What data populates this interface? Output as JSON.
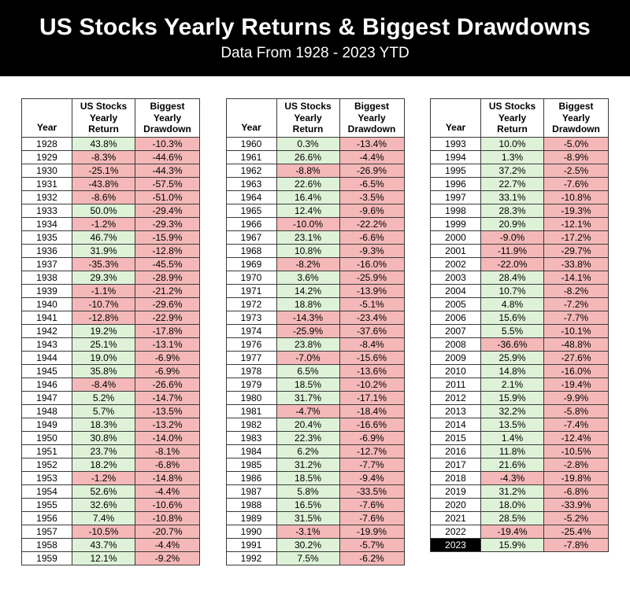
{
  "banner": {
    "title": "US Stocks Yearly Returns & Biggest Drawdowns",
    "subtitle": "Data From 1928 - 2023 YTD"
  },
  "colors": {
    "positive_bg": "#def2d8",
    "negative_bg": "#f5b8b8",
    "border": "#3a3a3a",
    "banner_bg": "#000000",
    "banner_text": "#ffffff",
    "highlight_year_bg": "#000000",
    "highlight_year_text": "#ffffff"
  },
  "chart_data": {
    "type": "table",
    "title": "US Stocks Yearly Returns & Biggest Drawdowns",
    "subtitle": "Data From 1928 - 2023 YTD",
    "columns": [
      "Year",
      "US Stocks Yearly Return",
      "Biggest Yearly Drawdown"
    ],
    "highlighted_year": "2023",
    "tables": [
      {
        "rows": [
          [
            "1928",
            "43.8%",
            "-10.3%"
          ],
          [
            "1929",
            "-8.3%",
            "-44.6%"
          ],
          [
            "1930",
            "-25.1%",
            "-44.3%"
          ],
          [
            "1931",
            "-43.8%",
            "-57.5%"
          ],
          [
            "1932",
            "-8.6%",
            "-51.0%"
          ],
          [
            "1933",
            "50.0%",
            "-29.4%"
          ],
          [
            "1934",
            "-1.2%",
            "-29.3%"
          ],
          [
            "1935",
            "46.7%",
            "-15.9%"
          ],
          [
            "1936",
            "31.9%",
            "-12.8%"
          ],
          [
            "1937",
            "-35.3%",
            "-45.5%"
          ],
          [
            "1938",
            "29.3%",
            "-28.9%"
          ],
          [
            "1939",
            "-1.1%",
            "-21.2%"
          ],
          [
            "1940",
            "-10.7%",
            "-29.6%"
          ],
          [
            "1941",
            "-12.8%",
            "-22.9%"
          ],
          [
            "1942",
            "19.2%",
            "-17.8%"
          ],
          [
            "1943",
            "25.1%",
            "-13.1%"
          ],
          [
            "1944",
            "19.0%",
            "-6.9%"
          ],
          [
            "1945",
            "35.8%",
            "-6.9%"
          ],
          [
            "1946",
            "-8.4%",
            "-26.6%"
          ],
          [
            "1947",
            "5.2%",
            "-14.7%"
          ],
          [
            "1948",
            "5.7%",
            "-13.5%"
          ],
          [
            "1949",
            "18.3%",
            "-13.2%"
          ],
          [
            "1950",
            "30.8%",
            "-14.0%"
          ],
          [
            "1951",
            "23.7%",
            "-8.1%"
          ],
          [
            "1952",
            "18.2%",
            "-6.8%"
          ],
          [
            "1953",
            "-1.2%",
            "-14.8%"
          ],
          [
            "1954",
            "52.6%",
            "-4.4%"
          ],
          [
            "1955",
            "32.6%",
            "-10.6%"
          ],
          [
            "1956",
            "7.4%",
            "-10.8%"
          ],
          [
            "1957",
            "-10.5%",
            "-20.7%"
          ],
          [
            "1958",
            "43.7%",
            "-4.4%"
          ],
          [
            "1959",
            "12.1%",
            "-9.2%"
          ]
        ]
      },
      {
        "rows": [
          [
            "1960",
            "0.3%",
            "-13.4%"
          ],
          [
            "1961",
            "26.6%",
            "-4.4%"
          ],
          [
            "1962",
            "-8.8%",
            "-26.9%"
          ],
          [
            "1963",
            "22.6%",
            "-6.5%"
          ],
          [
            "1964",
            "16.4%",
            "-3.5%"
          ],
          [
            "1965",
            "12.4%",
            "-9.6%"
          ],
          [
            "1966",
            "-10.0%",
            "-22.2%"
          ],
          [
            "1967",
            "23.1%",
            "-6.6%"
          ],
          [
            "1968",
            "10.8%",
            "-9.3%"
          ],
          [
            "1969",
            "-8.2%",
            "-16.0%"
          ],
          [
            "1970",
            "3.6%",
            "-25.9%"
          ],
          [
            "1971",
            "14.2%",
            "-13.9%"
          ],
          [
            "1972",
            "18.8%",
            "-5.1%"
          ],
          [
            "1973",
            "-14.3%",
            "-23.4%"
          ],
          [
            "1974",
            "-25.9%",
            "-37.6%"
          ],
          [
            "1976",
            "23.8%",
            "-8.4%"
          ],
          [
            "1977",
            "-7.0%",
            "-15.6%"
          ],
          [
            "1978",
            "6.5%",
            "-13.6%"
          ],
          [
            "1979",
            "18.5%",
            "-10.2%"
          ],
          [
            "1980",
            "31.7%",
            "-17.1%"
          ],
          [
            "1981",
            "-4.7%",
            "-18.4%"
          ],
          [
            "1982",
            "20.4%",
            "-16.6%"
          ],
          [
            "1983",
            "22.3%",
            "-6.9%"
          ],
          [
            "1984",
            "6.2%",
            "-12.7%"
          ],
          [
            "1985",
            "31.2%",
            "-7.7%"
          ],
          [
            "1986",
            "18.5%",
            "-9.4%"
          ],
          [
            "1987",
            "5.8%",
            "-33.5%"
          ],
          [
            "1988",
            "16.5%",
            "-7.6%"
          ],
          [
            "1989",
            "31.5%",
            "-7.6%"
          ],
          [
            "1990",
            "-3.1%",
            "-19.9%"
          ],
          [
            "1991",
            "30.2%",
            "-5.7%"
          ],
          [
            "1992",
            "7.5%",
            "-6.2%"
          ]
        ]
      },
      {
        "rows": [
          [
            "1993",
            "10.0%",
            "-5.0%"
          ],
          [
            "1994",
            "1.3%",
            "-8.9%"
          ],
          [
            "1995",
            "37.2%",
            "-2.5%"
          ],
          [
            "1996",
            "22.7%",
            "-7.6%"
          ],
          [
            "1997",
            "33.1%",
            "-10.8%"
          ],
          [
            "1998",
            "28.3%",
            "-19.3%"
          ],
          [
            "1999",
            "20.9%",
            "-12.1%"
          ],
          [
            "2000",
            "-9.0%",
            "-17.2%"
          ],
          [
            "2001",
            "-11.9%",
            "-29.7%"
          ],
          [
            "2002",
            "-22.0%",
            "-33.8%"
          ],
          [
            "2003",
            "28.4%",
            "-14.1%"
          ],
          [
            "2004",
            "10.7%",
            "-8.2%"
          ],
          [
            "2005",
            "4.8%",
            "-7.2%"
          ],
          [
            "2006",
            "15.6%",
            "-7.7%"
          ],
          [
            "2007",
            "5.5%",
            "-10.1%"
          ],
          [
            "2008",
            "-36.6%",
            "-48.8%"
          ],
          [
            "2009",
            "25.9%",
            "-27.6%"
          ],
          [
            "2010",
            "14.8%",
            "-16.0%"
          ],
          [
            "2011",
            "2.1%",
            "-19.4%"
          ],
          [
            "2012",
            "15.9%",
            "-9.9%"
          ],
          [
            "2013",
            "32.2%",
            "-5.8%"
          ],
          [
            "2014",
            "13.5%",
            "-7.4%"
          ],
          [
            "2015",
            "1.4%",
            "-12.4%"
          ],
          [
            "2016",
            "11.8%",
            "-10.5%"
          ],
          [
            "2017",
            "21.6%",
            "-2.8%"
          ],
          [
            "2018",
            "-4.3%",
            "-19.8%"
          ],
          [
            "2019",
            "31.2%",
            "-6.8%"
          ],
          [
            "2020",
            "18.0%",
            "-33.9%"
          ],
          [
            "2021",
            "28.5%",
            "-5.2%"
          ],
          [
            "2022",
            "-19.4%",
            "-25.4%"
          ],
          [
            "2023",
            "15.9%",
            "-7.8%"
          ]
        ]
      }
    ]
  }
}
